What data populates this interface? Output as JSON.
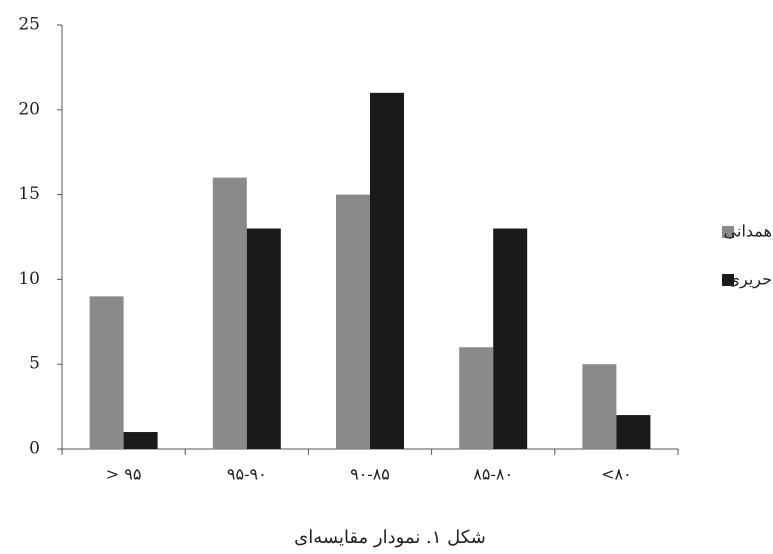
{
  "chart_data": {
    "type": "bar",
    "title": "شکل ۱. نمودار مقایسه‌ای",
    "categories": [
      "> ۹۵",
      "۹۵-۹۰",
      "۹۰-۸۵",
      "۸۵-۸۰",
      "<۸۰"
    ],
    "series": [
      {
        "name": "همدانی",
        "color": "#8a8a8a",
        "values": [
          9,
          16,
          15,
          6,
          5
        ]
      },
      {
        "name": "حریری",
        "color": "#1a1a1a",
        "values": [
          1,
          13,
          21,
          13,
          2
        ]
      }
    ],
    "ylim": [
      0,
      25
    ],
    "yticks": [
      0,
      5,
      10,
      15,
      20,
      25
    ],
    "grid": false,
    "legend": "right"
  }
}
